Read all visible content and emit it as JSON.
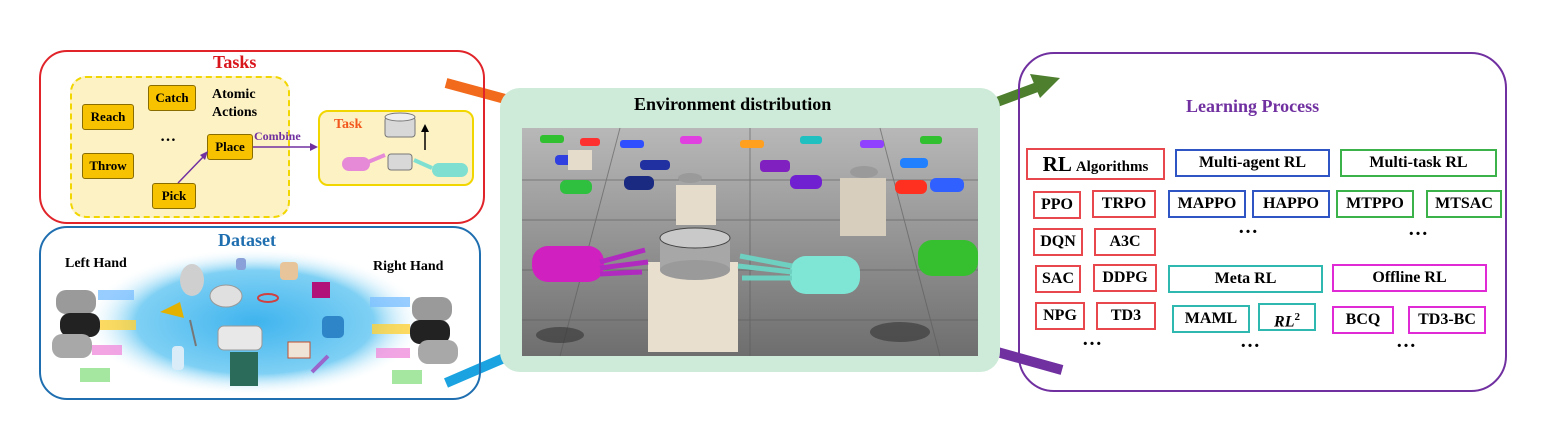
{
  "tasks": {
    "title": "Tasks",
    "atomic_label": "Atomic Actions",
    "actions": [
      "Reach",
      "Catch",
      "Throw",
      "Place",
      "Pick"
    ],
    "ellipsis": "…",
    "combine": "Combine",
    "task_label": "Task"
  },
  "dataset": {
    "title": "Dataset",
    "left_hand": "Left Hand",
    "right_hand": "Right Hand"
  },
  "environment": {
    "title": "Environment distribution"
  },
  "learning": {
    "title": "Learning Process",
    "groups": {
      "rl": {
        "header_big": "RL",
        "header_small": "Algorithms",
        "items": [
          "PPO",
          "TRPO",
          "DQN",
          "A3C",
          "SAC",
          "DDPG",
          "NPG",
          "TD3"
        ],
        "more": "…"
      },
      "multi_agent": {
        "header": "Multi-agent RL",
        "items": [
          "MAPPO",
          "HAPPO"
        ],
        "more": "…"
      },
      "multi_task": {
        "header": "Multi-task RL",
        "items": [
          "MTPPO",
          "MTSAC"
        ],
        "more": "…"
      },
      "meta": {
        "header": "Meta RL",
        "items": [
          "MAML"
        ],
        "rl2_base": "RL",
        "rl2_sup": "2",
        "more": "…"
      },
      "offline": {
        "header": "Offline RL",
        "items": [
          "BCQ",
          "TD3-BC"
        ],
        "more": "…"
      }
    }
  },
  "colors": {
    "tasks_border": "#e0242a",
    "tasks_title": "#d9151c",
    "dataset_border": "#1f6fb0",
    "dataset_title": "#1f6fb0",
    "learning_border": "#7030a0",
    "learning_title": "#7030a0",
    "env_bg": "#cdebd8",
    "rl_red": "#e8474e",
    "multi_agent_blue": "#2f55c4",
    "multi_task_green": "#3cb34a",
    "meta_teal": "#2fb8b0",
    "offline_magenta": "#e02ad6",
    "arrow_orange": "#f26a1b",
    "arrow_green": "#4e7f2e",
    "arrow_blue": "#1aa3e0",
    "arrow_purple": "#7030a0",
    "action_yellow": "#f7c300"
  }
}
